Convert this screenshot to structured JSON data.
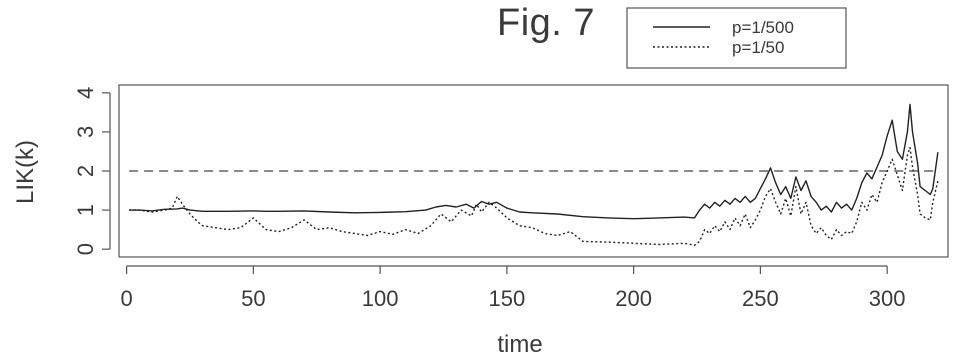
{
  "chart_data": {
    "type": "line",
    "title": "Fig. 7",
    "xlabel": "time",
    "ylabel": "LIK(k)",
    "xlim": [
      -3,
      324
    ],
    "ylim": [
      -0.2,
      4.2
    ],
    "xticks": [
      0,
      50,
      100,
      150,
      200,
      250,
      300
    ],
    "yticks": [
      0,
      1,
      2,
      3,
      4
    ],
    "grid": false,
    "legend_position": "top-center",
    "reference_line": {
      "y": 2,
      "style": "dashed"
    },
    "series": [
      {
        "name": "p=1/500",
        "style": "solid",
        "x": [
          1,
          5,
          10,
          15,
          20,
          22,
          25,
          30,
          40,
          50,
          55,
          60,
          70,
          80,
          90,
          100,
          110,
          118,
          122,
          126,
          130,
          134,
          137,
          140,
          143,
          146,
          150,
          155,
          160,
          170,
          180,
          190,
          200,
          210,
          220,
          224,
          226,
          228,
          230,
          232,
          234,
          236,
          238,
          240,
          242,
          244,
          246,
          248,
          250,
          252,
          254,
          256,
          258,
          260,
          262,
          264,
          266,
          268,
          270,
          272,
          274,
          276,
          278,
          280,
          282,
          284,
          286,
          288,
          290,
          292,
          294,
          296,
          298,
          300,
          302,
          304,
          306,
          308,
          309,
          310,
          312,
          313,
          315,
          317,
          318,
          320
        ],
        "values": [
          1.0,
          1.0,
          0.98,
          1.02,
          1.03,
          1.05,
          1.0,
          0.97,
          0.97,
          0.98,
          0.97,
          0.97,
          0.98,
          0.95,
          0.93,
          0.94,
          0.96,
          1.0,
          1.08,
          1.12,
          1.08,
          1.15,
          1.05,
          1.22,
          1.15,
          1.2,
          1.05,
          0.95,
          0.93,
          0.9,
          0.83,
          0.8,
          0.78,
          0.8,
          0.82,
          0.8,
          1.0,
          1.15,
          1.05,
          1.2,
          1.1,
          1.25,
          1.15,
          1.3,
          1.2,
          1.35,
          1.2,
          1.3,
          1.55,
          1.8,
          2.08,
          1.7,
          1.4,
          1.6,
          1.3,
          1.85,
          1.5,
          1.75,
          1.35,
          1.2,
          1.0,
          1.1,
          0.95,
          1.2,
          1.05,
          1.15,
          1.0,
          1.3,
          1.7,
          1.95,
          1.8,
          2.1,
          2.4,
          2.9,
          3.3,
          2.5,
          2.3,
          3.0,
          3.7,
          3.0,
          2.2,
          1.6,
          1.5,
          1.4,
          1.55,
          2.48
        ]
      },
      {
        "name": "p=1/50",
        "style": "dotted",
        "x": [
          1,
          5,
          10,
          15,
          18,
          20,
          22,
          25,
          28,
          30,
          35,
          40,
          45,
          50,
          55,
          60,
          65,
          70,
          75,
          80,
          85,
          90,
          95,
          100,
          105,
          110,
          115,
          120,
          124,
          128,
          132,
          136,
          138,
          140,
          143,
          146,
          150,
          155,
          160,
          165,
          170,
          175,
          180,
          190,
          200,
          210,
          220,
          224,
          226,
          228,
          230,
          232,
          234,
          236,
          238,
          240,
          242,
          244,
          246,
          248,
          250,
          252,
          254,
          256,
          258,
          260,
          262,
          264,
          266,
          268,
          270,
          272,
          274,
          276,
          278,
          280,
          282,
          284,
          286,
          288,
          290,
          292,
          294,
          296,
          298,
          300,
          302,
          304,
          306,
          308,
          309,
          310,
          312,
          313,
          315,
          317,
          318,
          320
        ],
        "values": [
          1.0,
          1.0,
          0.95,
          1.0,
          1.05,
          1.35,
          1.15,
          0.9,
          0.7,
          0.6,
          0.55,
          0.5,
          0.55,
          0.8,
          0.5,
          0.45,
          0.55,
          0.75,
          0.5,
          0.55,
          0.45,
          0.4,
          0.35,
          0.45,
          0.38,
          0.5,
          0.4,
          0.6,
          0.9,
          0.7,
          1.0,
          0.85,
          1.15,
          0.95,
          1.2,
          1.05,
          0.8,
          0.6,
          0.55,
          0.4,
          0.35,
          0.45,
          0.2,
          0.18,
          0.15,
          0.12,
          0.15,
          0.1,
          0.2,
          0.5,
          0.4,
          0.6,
          0.45,
          0.7,
          0.5,
          0.8,
          0.6,
          0.9,
          0.55,
          0.75,
          1.0,
          1.35,
          1.55,
          1.2,
          0.9,
          1.3,
          0.85,
          1.6,
          0.9,
          1.2,
          0.6,
          0.4,
          0.55,
          0.35,
          0.25,
          0.5,
          0.35,
          0.45,
          0.4,
          0.7,
          1.2,
          1.0,
          1.4,
          1.2,
          1.7,
          2.0,
          2.3,
          1.9,
          1.5,
          2.4,
          2.6,
          2.1,
          1.4,
          0.9,
          0.8,
          0.75,
          1.2,
          1.75
        ]
      }
    ]
  }
}
